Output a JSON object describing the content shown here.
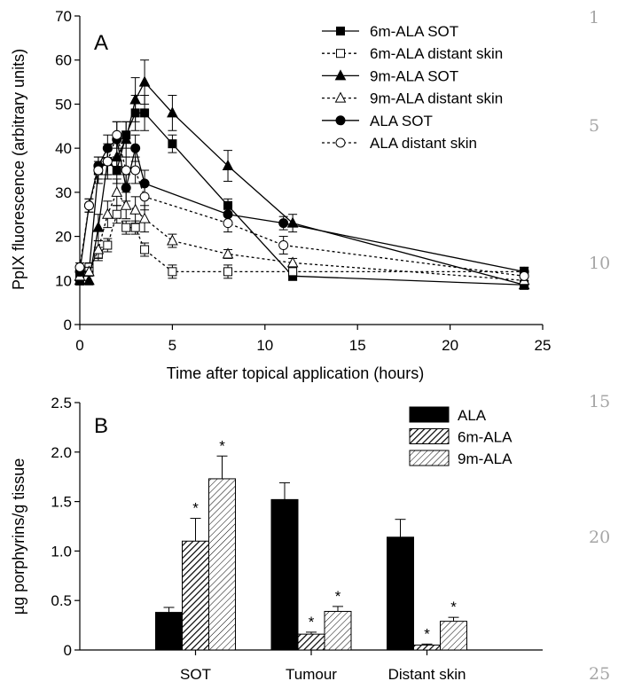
{
  "line_numbers": [
    "1",
    "5",
    "10",
    "15",
    "20",
    "25"
  ],
  "chart_data": [
    {
      "type": "line",
      "panel_label": "A",
      "xlabel": "Time after topical application (hours)",
      "ylabel": "PpIX fluorescence (arbitrary units)",
      "xlim": [
        0,
        25
      ],
      "ylim": [
        0,
        70
      ],
      "xticks": [
        "0",
        "5",
        "10",
        "15",
        "20",
        "25"
      ],
      "yticks": [
        "0",
        "10",
        "20",
        "30",
        "40",
        "50",
        "60",
        "70"
      ],
      "legend_position": "top-right",
      "grid": false,
      "series": [
        {
          "name": "6m-ALA SOT",
          "marker": "square",
          "filled": true,
          "dashed": false,
          "x": [
            0,
            0.5,
            1,
            1.5,
            2,
            2.5,
            3,
            3.5,
            5,
            8,
            11.5,
            24
          ],
          "y": [
            10,
            12,
            35,
            37,
            35,
            43,
            48,
            48,
            41,
            27,
            11,
            9
          ],
          "err": [
            1,
            1,
            3,
            3,
            3,
            3,
            4,
            4,
            2,
            1.5,
            1,
            1
          ]
        },
        {
          "name": "6m-ALA distant skin",
          "marker": "square",
          "filled": false,
          "dashed": true,
          "x": [
            0,
            0.5,
            1,
            1.5,
            2,
            2.5,
            3,
            3.5,
            5,
            8,
            11.5,
            24
          ],
          "y": [
            12,
            13,
            16,
            18,
            25,
            22,
            22,
            17,
            12,
            12,
            12,
            12
          ],
          "err": [
            1,
            1,
            1.5,
            1.5,
            2,
            1.5,
            1.5,
            1.5,
            1.5,
            1.5,
            1,
            1
          ]
        },
        {
          "name": "9m-ALA SOT",
          "marker": "triangle",
          "filled": true,
          "dashed": false,
          "x": [
            0,
            0.5,
            1,
            1.5,
            2,
            2.5,
            3,
            3.5,
            5,
            8,
            11.5,
            24
          ],
          "y": [
            10,
            10,
            22,
            37,
            38,
            42,
            51,
            55,
            48,
            36,
            23,
            9
          ],
          "err": [
            1,
            1,
            3,
            4,
            4,
            4,
            5,
            5,
            4,
            3.5,
            2,
            1
          ]
        },
        {
          "name": "9m-ALA distant skin",
          "marker": "triangle",
          "filled": false,
          "dashed": true,
          "x": [
            0,
            0.5,
            1,
            1.5,
            2,
            2.5,
            3,
            3.5,
            5,
            8,
            11.5,
            24
          ],
          "y": [
            11,
            12,
            17,
            25,
            30,
            27,
            26,
            24,
            19,
            16,
            14,
            10
          ],
          "err": [
            1,
            1,
            2,
            3,
            3,
            3,
            3,
            3,
            1.5,
            1,
            1,
            1
          ]
        },
        {
          "name": "ALA SOT",
          "marker": "circle",
          "filled": true,
          "dashed": false,
          "x": [
            0,
            0.5,
            1,
            1.5,
            2,
            2.5,
            3,
            3.5,
            8,
            11,
            24
          ],
          "y": [
            12,
            27,
            36,
            40,
            42,
            31,
            40,
            32,
            25,
            23,
            12
          ],
          "err": [
            1,
            1.5,
            2,
            3,
            4,
            3,
            3,
            3,
            2,
            1.5,
            1
          ]
        },
        {
          "name": "ALA distant skin",
          "marker": "circle",
          "filled": false,
          "dashed": true,
          "x": [
            0,
            0.5,
            1,
            1.5,
            2,
            2.5,
            3,
            3.5,
            8,
            11,
            24
          ],
          "y": [
            13,
            27,
            35,
            37,
            43,
            35,
            35,
            29,
            23,
            18,
            11
          ],
          "err": [
            1,
            1.5,
            2,
            3,
            3,
            3,
            3,
            3,
            2,
            2,
            1
          ]
        }
      ]
    },
    {
      "type": "bar",
      "panel_label": "B",
      "xlabel": "",
      "ylabel": "µg porphyrins/g tissue",
      "ylim": [
        0,
        2.5
      ],
      "yticks": [
        "0",
        "0.5",
        "1.0",
        "1.5",
        "2.0",
        "2.5"
      ],
      "categories": [
        "SOT",
        "Tumour",
        "Distant skin"
      ],
      "legend_position": "top-right",
      "grid": false,
      "series": [
        {
          "name": "ALA",
          "fill": "solid-black",
          "values": [
            0.38,
            1.52,
            1.14
          ],
          "err": [
            0.05,
            0.17,
            0.18
          ],
          "significant": [
            false,
            false,
            false
          ]
        },
        {
          "name": "6m-ALA",
          "fill": "dense-hatch",
          "values": [
            1.1,
            0.16,
            0.05
          ],
          "err": [
            0.23,
            0.02,
            0.01
          ],
          "significant": [
            true,
            true,
            true
          ]
        },
        {
          "name": "9m-ALA",
          "fill": "sparse-hatch",
          "values": [
            1.73,
            0.39,
            0.29
          ],
          "err": [
            0.23,
            0.05,
            0.04
          ],
          "significant": [
            true,
            true,
            true
          ]
        }
      ],
      "significance_marker": "*"
    }
  ]
}
